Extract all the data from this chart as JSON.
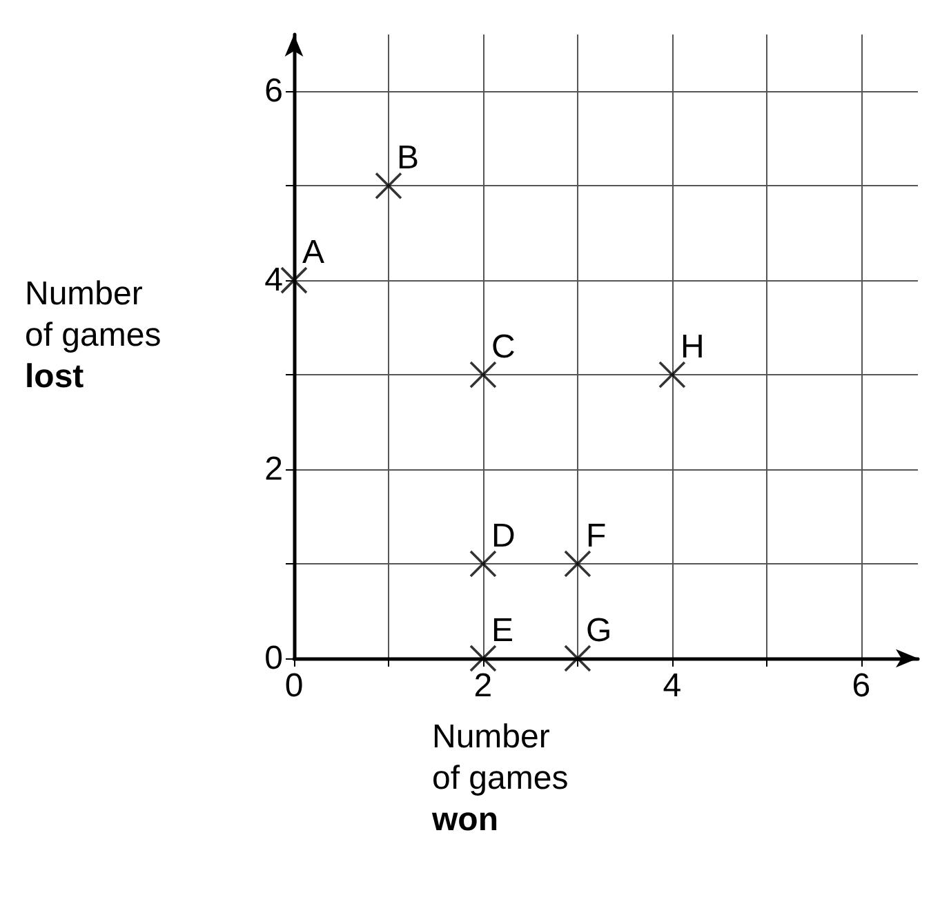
{
  "chart_data": {
    "type": "scatter",
    "xlabel": "Number of games won",
    "ylabel": "Number of games lost",
    "x": [
      0,
      1,
      2,
      4,
      2,
      3,
      2,
      3
    ],
    "values": [
      4,
      5,
      3,
      3,
      1,
      1,
      0,
      0
    ],
    "color": "#000000",
    "marker": "cross",
    "grid": true,
    "xlim": [
      0,
      6.6
    ],
    "ylim": [
      0,
      6.6
    ],
    "xticks": [
      0,
      {
        "value": 1,
        "label": null
      },
      2,
      {
        "value": 3,
        "label": null
      },
      4,
      {
        "value": 5,
        "label": null
      },
      6
    ],
    "yticks": [
      0,
      {
        "value": 1,
        "label": null
      },
      2,
      {
        "value": 3,
        "label": null
      },
      4,
      {
        "value": 5,
        "label": null
      },
      6
    ],
    "annotations": [
      {
        "text": "A",
        "x": 0,
        "y": 4
      },
      {
        "text": "B",
        "x": 1,
        "y": 5
      },
      {
        "text": "C",
        "x": 2,
        "y": 3
      },
      {
        "text": "H",
        "x": 4,
        "y": 3
      },
      {
        "text": "D",
        "x": 2,
        "y": 1
      },
      {
        "text": "F",
        "x": 3,
        "y": 1
      },
      {
        "text": "E",
        "x": 2,
        "y": 0
      },
      {
        "text": "G",
        "x": 3,
        "y": 0
      }
    ]
  }
}
